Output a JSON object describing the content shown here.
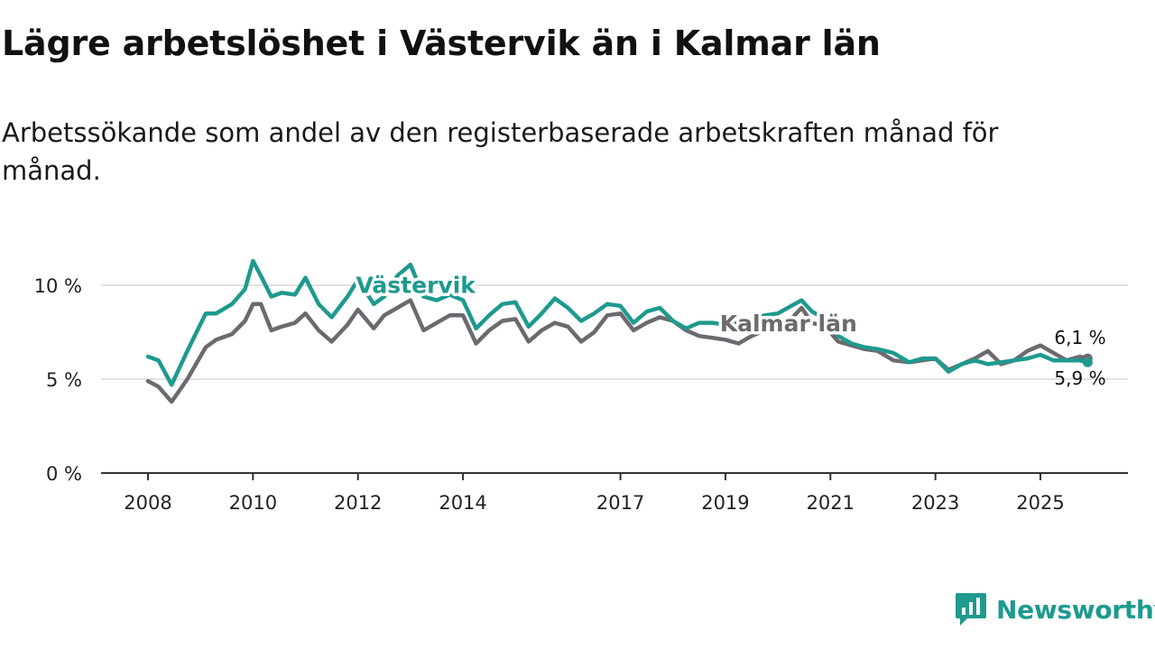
{
  "header": {
    "title": "Lägre arbetslöshet i Västervik än i Kalmar län",
    "subtitle": "Arbetssökande som andel av den registerbaserade arbetskraften månad för månad."
  },
  "brand": {
    "name": "Newsworthy",
    "color": "#1e9a8e"
  },
  "chart_data": {
    "type": "line",
    "title": "Lägre arbetslöshet i Västervik än i Kalmar län",
    "subtitle": "Arbetssökande som andel av den registerbaserade arbetskraften månad för månad.",
    "xlabel": "",
    "ylabel": "",
    "xlim": [
      2008.0,
      2026.5
    ],
    "ylim": [
      0,
      10
    ],
    "y_ticks": [
      0,
      5,
      10
    ],
    "y_tick_labels": [
      "0 %",
      "5 %",
      "10 %"
    ],
    "x_ticks": [
      2008,
      2010,
      2012,
      2014,
      2017,
      2019,
      2021,
      2023,
      2025
    ],
    "x_tick_labels": [
      "2008",
      "2010",
      "2012",
      "2014",
      "2017",
      "2019",
      "2021",
      "2023",
      "2025"
    ],
    "grid": true,
    "series": [
      {
        "name": "Västervik",
        "color": "#1e9a8e",
        "end_label": "5,9 %",
        "x": [
          2008.0,
          2008.2,
          2008.45,
          2008.75,
          2009.1,
          2009.3,
          2009.6,
          2009.85,
          2010.0,
          2010.15,
          2010.35,
          2010.55,
          2010.8,
          2011.0,
          2011.25,
          2011.5,
          2011.8,
          2012.0,
          2012.3,
          2012.5,
          2012.75,
          2013.0,
          2013.25,
          2013.5,
          2013.75,
          2014.0,
          2014.25,
          2014.5,
          2014.75,
          2015.0,
          2015.25,
          2015.5,
          2015.75,
          2016.0,
          2016.25,
          2016.5,
          2016.75,
          2017.0,
          2017.25,
          2017.5,
          2017.75,
          2018.0,
          2018.25,
          2018.5,
          2018.75,
          2019.0,
          2019.25,
          2019.5,
          2019.75,
          2020.0,
          2020.25,
          2020.45,
          2020.65,
          2020.9,
          2021.15,
          2021.4,
          2021.65,
          2021.9,
          2022.2,
          2022.5,
          2022.75,
          2023.0,
          2023.25,
          2023.5,
          2023.75,
          2024.0,
          2024.25,
          2024.5,
          2024.75,
          2025.0,
          2025.25,
          2025.5,
          2025.75,
          2025.9
        ],
        "values": [
          6.2,
          6.0,
          4.7,
          6.5,
          8.5,
          8.5,
          9.0,
          9.8,
          11.3,
          10.5,
          9.4,
          9.6,
          9.5,
          10.4,
          9.0,
          8.3,
          9.4,
          10.3,
          9.0,
          9.4,
          10.5,
          11.1,
          9.4,
          9.2,
          9.5,
          9.2,
          7.7,
          8.4,
          9.0,
          9.1,
          7.8,
          8.5,
          9.3,
          8.8,
          8.1,
          8.5,
          9.0,
          8.9,
          8.0,
          8.6,
          8.8,
          8.1,
          7.7,
          8.0,
          8.0,
          7.9,
          8.0,
          8.2,
          8.4,
          8.5,
          8.9,
          9.2,
          8.6,
          8.2,
          7.3,
          6.9,
          6.7,
          6.6,
          6.4,
          5.9,
          6.1,
          6.1,
          5.4,
          5.8,
          6.0,
          5.8,
          5.9,
          6.0,
          6.1,
          6.3,
          6.0,
          6.0,
          6.0,
          5.9
        ]
      },
      {
        "name": "Kalmar län",
        "color": "#6d6a6f",
        "end_label": "6,1 %",
        "x": [
          2008.0,
          2008.2,
          2008.45,
          2008.75,
          2009.1,
          2009.3,
          2009.6,
          2009.85,
          2010.0,
          2010.15,
          2010.35,
          2010.55,
          2010.8,
          2011.0,
          2011.25,
          2011.5,
          2011.8,
          2012.0,
          2012.3,
          2012.5,
          2012.75,
          2013.0,
          2013.25,
          2013.5,
          2013.75,
          2014.0,
          2014.25,
          2014.5,
          2014.75,
          2015.0,
          2015.25,
          2015.5,
          2015.75,
          2016.0,
          2016.25,
          2016.5,
          2016.75,
          2017.0,
          2017.25,
          2017.5,
          2017.75,
          2018.0,
          2018.25,
          2018.5,
          2018.75,
          2019.0,
          2019.25,
          2019.5,
          2019.75,
          2020.0,
          2020.25,
          2020.45,
          2020.65,
          2020.9,
          2021.15,
          2021.4,
          2021.65,
          2021.9,
          2022.2,
          2022.5,
          2022.75,
          2023.0,
          2023.25,
          2023.5,
          2023.75,
          2024.0,
          2024.25,
          2024.5,
          2024.75,
          2025.0,
          2025.25,
          2025.5,
          2025.75,
          2025.9
        ],
        "values": [
          4.9,
          4.6,
          3.8,
          5.0,
          6.7,
          7.1,
          7.4,
          8.1,
          9.0,
          9.0,
          7.6,
          7.8,
          8.0,
          8.5,
          7.6,
          7.0,
          7.9,
          8.7,
          7.7,
          8.4,
          8.8,
          9.2,
          7.6,
          8.0,
          8.4,
          8.4,
          6.9,
          7.6,
          8.1,
          8.2,
          7.0,
          7.6,
          8.0,
          7.8,
          7.0,
          7.5,
          8.4,
          8.5,
          7.6,
          8.0,
          8.3,
          8.1,
          7.6,
          7.3,
          7.2,
          7.1,
          6.9,
          7.3,
          7.6,
          7.8,
          8.2,
          8.8,
          8.0,
          7.8,
          7.0,
          6.8,
          6.6,
          6.5,
          6.0,
          5.9,
          6.0,
          6.1,
          5.5,
          5.8,
          6.1,
          6.5,
          5.8,
          6.0,
          6.5,
          6.8,
          6.4,
          6.0,
          6.2,
          6.1
        ]
      }
    ],
    "annotations": [
      {
        "text": "Västervik",
        "series": "Västervik",
        "x": 2013.1,
        "y": 9.6
      },
      {
        "text": "Kalmar län",
        "series": "Kalmar län",
        "x": 2020.2,
        "y": 7.55
      }
    ]
  }
}
